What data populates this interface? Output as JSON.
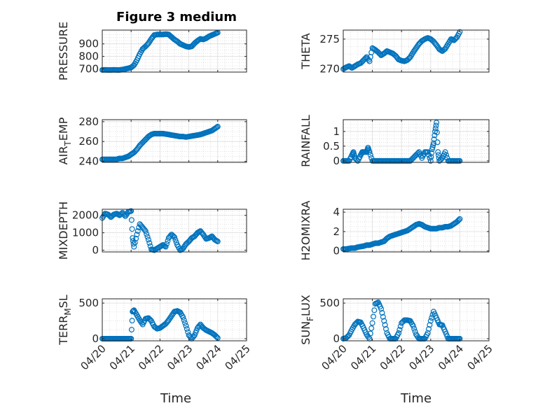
{
  "figure": {
    "title": "Figure 3 medium"
  },
  "chart_data": [
    {
      "type": "scatter",
      "ylabel": "PRESSURE",
      "ylabel_main": "PRESSURE",
      "ylabel_sub": "",
      "ylabel_tail": "",
      "ylim": [
        675,
        1010
      ],
      "yticks": [
        700,
        800,
        900
      ],
      "ytick_labels": [
        "700",
        "800",
        "900"
      ],
      "xlim": [
        0,
        5
      ],
      "xticks": [
        0,
        1,
        2,
        3,
        4,
        5
      ],
      "xtick_labels": [
        "04/20",
        "04/21",
        "04/22",
        "04/23",
        "04/24",
        "04/25"
      ],
      "grid": true,
      "minor_grid": true,
      "x": [
        0,
        0.1,
        0.2,
        0.3,
        0.4,
        0.5,
        0.6,
        0.7,
        0.8,
        0.9,
        1.0,
        1.1,
        1.2,
        1.3,
        1.4,
        1.5,
        1.6,
        1.7,
        1.8,
        1.9,
        2.0,
        2.1,
        2.2,
        2.3,
        2.4,
        2.5,
        2.6,
        2.7,
        2.8,
        2.9,
        3.0,
        3.1,
        3.2,
        3.3,
        3.4,
        3.5,
        3.6,
        3.7,
        3.8,
        3.9,
        4.0
      ],
      "y": [
        692,
        693,
        692,
        692,
        693,
        692,
        692,
        695,
        700,
        705,
        712,
        730,
        770,
        820,
        860,
        880,
        905,
        940,
        970,
        975,
        975,
        975,
        978,
        975,
        955,
        935,
        920,
        900,
        890,
        880,
        875,
        880,
        905,
        925,
        940,
        935,
        945,
        960,
        970,
        980,
        990
      ]
    },
    {
      "type": "scatter",
      "ylabel": "THETA",
      "ylabel_main": "THETA",
      "ylabel_sub": "",
      "ylabel_tail": "",
      "ylim": [
        269.5,
        276.5
      ],
      "yticks": [
        270,
        275
      ],
      "ytick_labels": [
        "270",
        "275"
      ],
      "xlim": [
        0,
        5
      ],
      "xticks": [
        0,
        1,
        2,
        3,
        4,
        5
      ],
      "xtick_labels": [
        "04/20",
        "04/21",
        "04/22",
        "04/23",
        "04/24",
        "04/25"
      ],
      "grid": true,
      "minor_grid": true,
      "x": [
        0,
        0.1,
        0.2,
        0.3,
        0.4,
        0.5,
        0.6,
        0.7,
        0.8,
        0.9,
        1.0,
        1.1,
        1.2,
        1.3,
        1.4,
        1.5,
        1.6,
        1.7,
        1.8,
        1.9,
        2.0,
        2.1,
        2.2,
        2.3,
        2.4,
        2.5,
        2.6,
        2.7,
        2.8,
        2.9,
        3.0,
        3.1,
        3.2,
        3.3,
        3.4,
        3.5,
        3.6,
        3.7,
        3.8,
        3.9,
        4.0
      ],
      "y": [
        270,
        270.3,
        270.5,
        270.2,
        270.5,
        270.8,
        271,
        271.5,
        272,
        271.3,
        273.5,
        273.2,
        272.8,
        272.3,
        272.6,
        273,
        272.8,
        272.6,
        272.2,
        271.6,
        271.4,
        271.3,
        271.5,
        272,
        272.8,
        273.5,
        274.2,
        274.7,
        275,
        275.2,
        275,
        274.6,
        274,
        273.3,
        273,
        273.4,
        274.2,
        275,
        274.8,
        275.3,
        276.2
      ]
    },
    {
      "type": "scatter",
      "ylabel": "AIR_TEMP",
      "ylabel_main": "AIR",
      "ylabel_sub": "T",
      "ylabel_tail": "EMP",
      "ylim": [
        239,
        282
      ],
      "yticks": [
        240,
        260,
        280
      ],
      "ytick_labels": [
        "240",
        "260",
        "280"
      ],
      "xlim": [
        0,
        5
      ],
      "xticks": [
        0,
        1,
        2,
        3,
        4,
        5
      ],
      "xtick_labels": [
        "04/20",
        "04/21",
        "04/22",
        "04/23",
        "04/24",
        "04/25"
      ],
      "grid": true,
      "minor_grid": true,
      "x": [
        0,
        0.1,
        0.2,
        0.3,
        0.4,
        0.5,
        0.6,
        0.7,
        0.8,
        0.9,
        1.0,
        1.1,
        1.2,
        1.3,
        1.4,
        1.5,
        1.6,
        1.7,
        1.8,
        1.9,
        2.0,
        2.1,
        2.2,
        2.3,
        2.4,
        2.5,
        2.6,
        2.7,
        2.8,
        2.9,
        3.0,
        3.1,
        3.2,
        3.3,
        3.4,
        3.5,
        3.6,
        3.7,
        3.8,
        3.9,
        4.0
      ],
      "y": [
        242,
        242,
        242,
        242,
        242,
        242,
        243,
        243,
        244,
        245,
        247,
        249,
        252,
        256,
        259,
        262,
        265,
        267,
        268,
        268,
        268,
        268,
        267.5,
        267,
        266.5,
        266,
        265.5,
        265,
        265,
        264.5,
        265,
        265.5,
        266,
        266.5,
        267,
        268,
        269,
        270,
        271,
        273,
        275
      ]
    },
    {
      "type": "scatter",
      "ylabel": "RAINFALL",
      "ylabel_main": "RAINFALL",
      "ylabel_sub": "",
      "ylabel_tail": "",
      "ylim": [
        -0.05,
        1.4
      ],
      "yticks": [
        0,
        0.5,
        1
      ],
      "ytick_labels": [
        "0",
        "0.5",
        "1"
      ],
      "xlim": [
        0,
        5
      ],
      "xticks": [
        0,
        1,
        2,
        3,
        4,
        5
      ],
      "xtick_labels": [
        "04/20",
        "04/21",
        "04/22",
        "04/23",
        "04/24",
        "04/25"
      ],
      "grid": true,
      "minor_grid": true,
      "x": [
        0,
        0.1,
        0.2,
        0.3,
        0.35,
        0.4,
        0.5,
        0.6,
        0.65,
        0.7,
        0.8,
        0.85,
        0.9,
        1.0,
        1.1,
        1.2,
        1.3,
        1.4,
        1.5,
        1.6,
        1.7,
        1.8,
        1.9,
        2.0,
        2.1,
        2.2,
        2.3,
        2.4,
        2.5,
        2.6,
        2.7,
        2.8,
        2.9,
        3.0,
        3.05,
        3.1,
        3.15,
        3.2,
        3.25,
        3.3,
        3.4,
        3.5,
        3.6,
        3.7,
        3.8,
        3.9,
        4.0
      ],
      "y": [
        0,
        0,
        0,
        0.2,
        0.3,
        0.1,
        0,
        0.2,
        0.3,
        0.3,
        0.3,
        0.45,
        0.3,
        0,
        0,
        0,
        0,
        0,
        0,
        0,
        0,
        0,
        0,
        0,
        0,
        0,
        0,
        0.1,
        0.2,
        0.3,
        0.1,
        0.3,
        0.3,
        0,
        0.4,
        0.6,
        1.0,
        1.3,
        0.3,
        0,
        0.1,
        0.3,
        0,
        0,
        0,
        0,
        0
      ]
    },
    {
      "type": "scatter",
      "ylabel": "MIXDEPTH",
      "ylabel_main": "MIXDEPTH",
      "ylabel_sub": "",
      "ylabel_tail": "",
      "ylim": [
        -100,
        2350
      ],
      "yticks": [
        0,
        1000,
        2000
      ],
      "ytick_labels": [
        "0",
        "1000",
        "2000"
      ],
      "xlim": [
        0,
        5
      ],
      "xticks": [
        0,
        1,
        2,
        3,
        4,
        5
      ],
      "xtick_labels": [
        "04/20",
        "04/21",
        "04/22",
        "04/23",
        "04/24",
        "04/25"
      ],
      "grid": true,
      "minor_grid": true,
      "x": [
        0,
        0.1,
        0.2,
        0.3,
        0.4,
        0.5,
        0.6,
        0.7,
        0.8,
        0.9,
        1.0,
        1.05,
        1.1,
        1.2,
        1.3,
        1.4,
        1.5,
        1.6,
        1.7,
        1.8,
        1.9,
        2.0,
        2.1,
        2.2,
        2.3,
        2.4,
        2.5,
        2.6,
        2.7,
        2.8,
        2.9,
        3.0,
        3.1,
        3.2,
        3.3,
        3.4,
        3.5,
        3.6,
        3.7,
        3.8,
        3.9,
        4.0
      ],
      "y": [
        1850,
        2100,
        2050,
        1900,
        2050,
        2100,
        2000,
        2150,
        1950,
        2200,
        2250,
        700,
        200,
        900,
        1500,
        1300,
        1100,
        600,
        50,
        0,
        100,
        200,
        300,
        200,
        700,
        900,
        750,
        300,
        0,
        100,
        350,
        500,
        700,
        800,
        1000,
        1100,
        900,
        650,
        700,
        800,
        600,
        500
      ]
    },
    {
      "type": "scatter",
      "ylabel": "H2OMIXRA",
      "ylabel_main": "H2OMIXRA",
      "ylabel_sub": "",
      "ylabel_tail": "",
      "ylim": [
        -0.1,
        4.3
      ],
      "yticks": [
        0,
        2,
        4
      ],
      "ytick_labels": [
        "0",
        "2",
        "4"
      ],
      "xlim": [
        0,
        5
      ],
      "xticks": [
        0,
        1,
        2,
        3,
        4,
        5
      ],
      "xtick_labels": [
        "04/20",
        "04/21",
        "04/22",
        "04/23",
        "04/24",
        "04/25"
      ],
      "grid": true,
      "minor_grid": true,
      "x": [
        0,
        0.1,
        0.2,
        0.3,
        0.4,
        0.5,
        0.6,
        0.7,
        0.8,
        0.9,
        1.0,
        1.1,
        1.2,
        1.3,
        1.4,
        1.5,
        1.6,
        1.7,
        1.8,
        1.9,
        2.0,
        2.1,
        2.2,
        2.3,
        2.4,
        2.5,
        2.6,
        2.7,
        2.8,
        2.9,
        3.0,
        3.1,
        3.2,
        3.3,
        3.4,
        3.5,
        3.6,
        3.7,
        3.8,
        3.9,
        4.0
      ],
      "y": [
        0.2,
        0.2,
        0.25,
        0.3,
        0.3,
        0.4,
        0.45,
        0.5,
        0.6,
        0.6,
        0.7,
        0.8,
        0.8,
        0.9,
        1.0,
        1.3,
        1.5,
        1.6,
        1.7,
        1.8,
        1.9,
        2.0,
        2.1,
        2.3,
        2.5,
        2.7,
        2.8,
        2.7,
        2.5,
        2.4,
        2.3,
        2.3,
        2.3,
        2.4,
        2.4,
        2.5,
        2.5,
        2.6,
        2.8,
        3.0,
        3.3
      ]
    },
    {
      "type": "scatter",
      "ylabel": "TERR_MSL",
      "ylabel_main": "TERR",
      "ylabel_sub": "M",
      "ylabel_tail": "SL",
      "ylim": [
        -30,
        560
      ],
      "yticks": [
        0,
        500
      ],
      "ytick_labels": [
        "0",
        "500"
      ],
      "xlim": [
        0,
        5
      ],
      "xticks": [
        0,
        1,
        2,
        3,
        4,
        5
      ],
      "xtick_labels": [
        "04/20",
        "04/21",
        "04/22",
        "04/23",
        "04/24",
        "04/25"
      ],
      "grid": true,
      "minor_grid": true,
      "x": [
        0,
        0.1,
        0.2,
        0.3,
        0.4,
        0.5,
        0.6,
        0.7,
        0.8,
        0.9,
        1.0,
        1.05,
        1.1,
        1.2,
        1.3,
        1.4,
        1.5,
        1.6,
        1.7,
        1.8,
        1.9,
        2.0,
        2.1,
        2.2,
        2.3,
        2.4,
        2.5,
        2.6,
        2.7,
        2.8,
        2.9,
        3.0,
        3.1,
        3.2,
        3.3,
        3.4,
        3.5,
        3.6,
        3.7,
        3.8,
        3.9,
        4.0
      ],
      "y": [
        0,
        0,
        0,
        0,
        0,
        0,
        0,
        0,
        0,
        0,
        0,
        380,
        400,
        330,
        260,
        200,
        280,
        290,
        250,
        170,
        140,
        150,
        180,
        210,
        260,
        320,
        380,
        390,
        370,
        300,
        180,
        50,
        0,
        50,
        150,
        200,
        150,
        120,
        100,
        80,
        50,
        10
      ]
    },
    {
      "type": "scatter",
      "ylabel": "SUN_FLUX",
      "ylabel_main": "SUN",
      "ylabel_sub": "F",
      "ylabel_tail": "LUX",
      "ylim": [
        -30,
        560
      ],
      "yticks": [
        0,
        500
      ],
      "ytick_labels": [
        "0",
        "500"
      ],
      "xlim": [
        0,
        5
      ],
      "xticks": [
        0,
        1,
        2,
        3,
        4,
        5
      ],
      "xtick_labels": [
        "04/20",
        "04/21",
        "04/22",
        "04/23",
        "04/24",
        "04/25"
      ],
      "grid": true,
      "minor_grid": true,
      "x": [
        0,
        0.1,
        0.2,
        0.3,
        0.4,
        0.5,
        0.6,
        0.7,
        0.8,
        0.9,
        1.0,
        1.1,
        1.2,
        1.3,
        1.4,
        1.5,
        1.6,
        1.7,
        1.8,
        1.9,
        2.0,
        2.1,
        2.2,
        2.3,
        2.4,
        2.5,
        2.6,
        2.7,
        2.8,
        2.9,
        3.0,
        3.1,
        3.2,
        3.3,
        3.4,
        3.5,
        3.6,
        3.7,
        3.8,
        3.9,
        4.0
      ],
      "y": [
        0,
        10,
        50,
        130,
        200,
        240,
        230,
        150,
        60,
        0,
        220,
        490,
        510,
        420,
        250,
        80,
        0,
        0,
        0,
        80,
        220,
        260,
        260,
        250,
        180,
        60,
        0,
        0,
        0,
        80,
        250,
        380,
        290,
        200,
        190,
        100,
        0,
        0,
        0,
        0,
        0
      ]
    }
  ]
}
